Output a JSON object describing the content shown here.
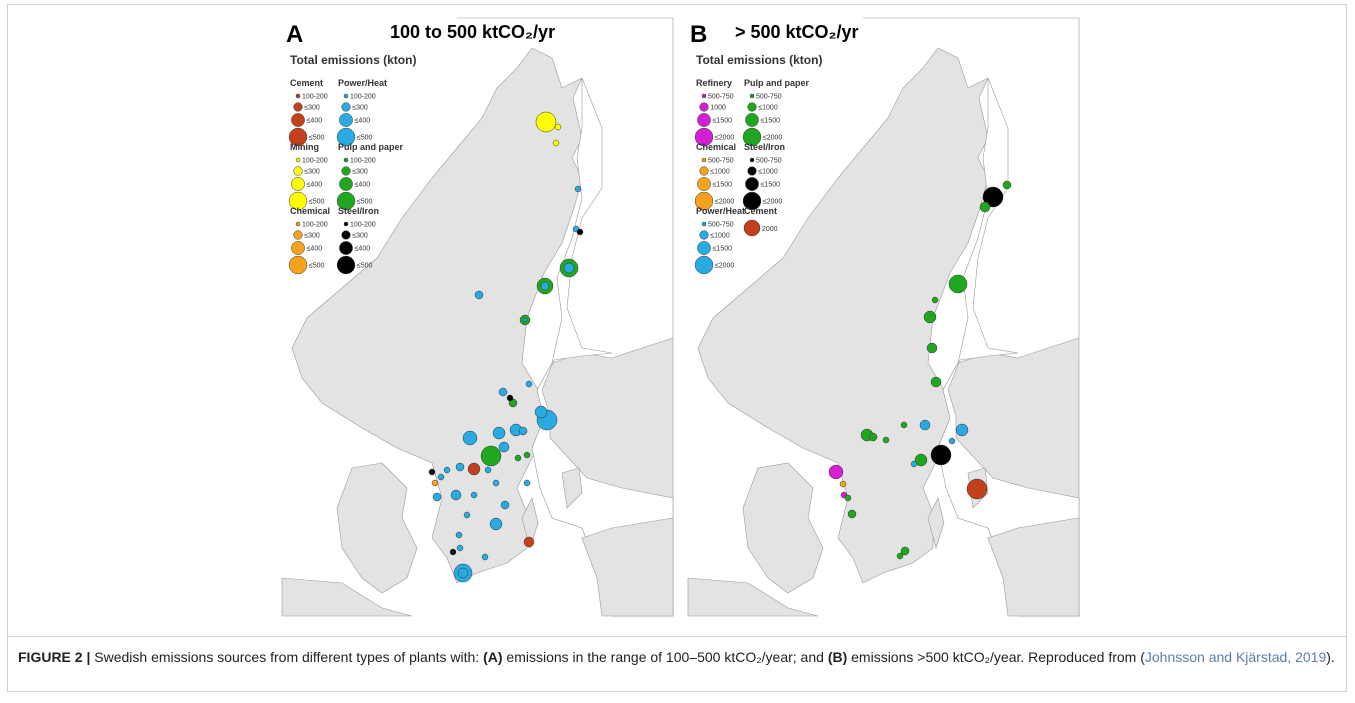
{
  "figure": {
    "panels": [
      {
        "letter": "A",
        "title": "100 to 500 ktCO₂/yr",
        "legend_title": "Total emissions (kton)",
        "groups": [
          {
            "name": "Cement",
            "color": "#c2401c",
            "items": [
              "100-200",
              "≤300",
              "≤400",
              "≤500"
            ]
          },
          {
            "name": "Power/Heat",
            "color": "#29abe2",
            "items": [
              "100-200",
              "≤300",
              "≤400",
              "≤500"
            ]
          },
          {
            "name": "Mining",
            "color": "#ffff00",
            "items": [
              "100-200",
              "≤300",
              "≤400",
              "≤500"
            ]
          },
          {
            "name": "Pulp and paper",
            "color": "#1fa81f",
            "items": [
              "100-200",
              "≤300",
              "≤400",
              "≤500"
            ]
          },
          {
            "name": "Chemical",
            "color": "#f7a21b",
            "items": [
              "100-200",
              "≤300",
              "≤400",
              "≤500"
            ]
          },
          {
            "name": "Steel/Iron",
            "color": "#000000",
            "items": [
              "100-200",
              "≤300",
              "≤400",
              "≤500"
            ]
          }
        ]
      },
      {
        "letter": "B",
        "title": "> 500 ktCO₂/yr",
        "legend_title": "Total emissions (kton)",
        "groups": [
          {
            "name": "Refinery",
            "color": "#d41fd4",
            "items": [
              "500-750",
              "1000",
              "≤1500",
              "≤2000"
            ]
          },
          {
            "name": "Pulp and paper",
            "color": "#1fa81f",
            "items": [
              "500-750",
              "≤1000",
              "≤1500",
              "≤2000"
            ]
          },
          {
            "name": "Chemical",
            "color": "#f7a21b",
            "items": [
              "500-750",
              "≤1000",
              "≤1500",
              "≤2000"
            ]
          },
          {
            "name": "Steel/Iron",
            "color": "#000000",
            "items": [
              "500-750",
              "≤1000",
              "≤1500",
              "≤2000"
            ]
          },
          {
            "name": "Power/Heat",
            "color": "#29abe2",
            "items": [
              "500-750",
              "≤1000",
              "≤1500",
              "≤2000"
            ]
          },
          {
            "name": "Cement",
            "color": "#c2401c",
            "items": [
              "2000"
            ]
          }
        ]
      }
    ],
    "caption": {
      "label": "FIGURE 2 |",
      "parts": [
        " Swedish emissions sources from different types of plants with: ",
        "(A)",
        " emissions in the range of 100–500 ktCO₂/year; and ",
        "(B)",
        " emissions >500 ktCO₂/year. Reproduced from (",
        "Johnsson and Kjärstad, 2019",
        ")."
      ]
    }
  }
}
